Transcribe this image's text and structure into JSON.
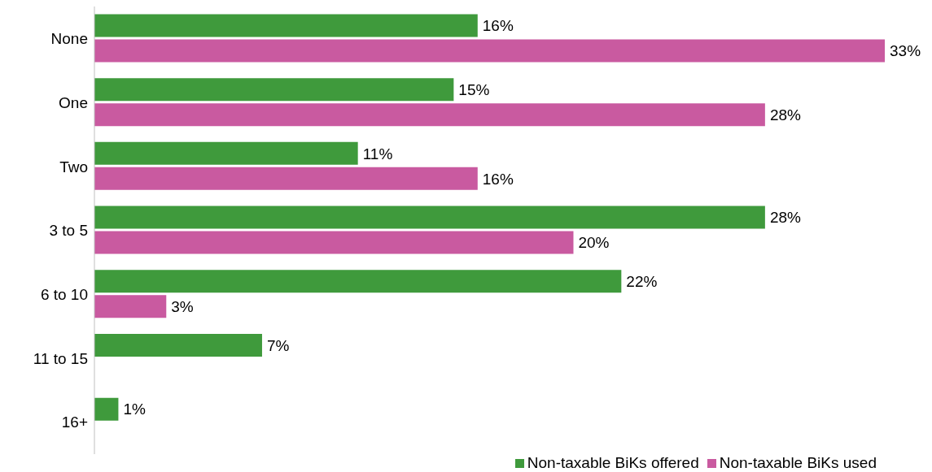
{
  "chart_data": {
    "type": "bar",
    "orientation": "horizontal",
    "categories": [
      "None",
      "One",
      "Two",
      "3 to 5",
      "6 to 10",
      "11 to 15",
      "16+"
    ],
    "series": [
      {
        "name": "Non-taxable BiKs offered",
        "color": "#3f9a3c",
        "values": [
          16,
          15,
          11,
          28,
          22,
          7,
          1
        ],
        "value_labels": [
          "16%",
          "15%",
          "11%",
          "28%",
          "22%",
          "7%",
          "1%"
        ]
      },
      {
        "name": "Non-taxable BiKs used",
        "color": "#c95aa0",
        "values": [
          33,
          28,
          16,
          20,
          3,
          null,
          null
        ],
        "value_labels": [
          "33%",
          "28%",
          "16%",
          "20%",
          "3%",
          null,
          null
        ]
      }
    ],
    "tick_labels": "y",
    "grid": false,
    "legend": "bottom right"
  }
}
